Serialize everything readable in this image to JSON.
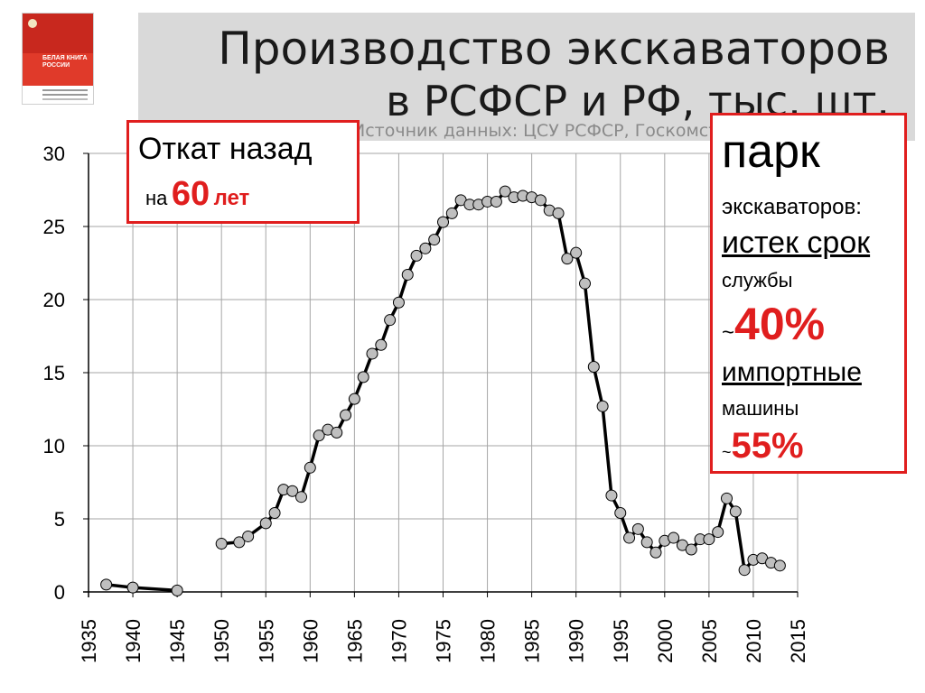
{
  "title": {
    "line1": "Производство экскаваторов",
    "line2": "в РСФСР и РФ, тыс. шт.",
    "source": "Источник данных: ЦСУ РСФСР, Госкомстат"
  },
  "book": {
    "text": "БЕЛАЯ КНИГА РОССИИ",
    "colors": {
      "cover": "#c8281e",
      "band": "#e03a2a"
    }
  },
  "callout_left": {
    "line1": "Откат назад",
    "prefix": "на",
    "number": "60",
    "suffix": "лет"
  },
  "callout_right": {
    "park": "парк",
    "excavators": "экскаваторов:",
    "expired": "истек срок",
    "service": "службы",
    "tilde1": "~",
    "pct_expired": "40%",
    "imported": "импортные",
    "machines": "машины",
    "tilde2": "~",
    "pct_imported": "55%"
  },
  "colors": {
    "accent": "#e01e1e",
    "line": "#000000",
    "marker": "#bfbfbf",
    "grid": "#a6a6a6"
  },
  "chart_data": {
    "type": "line",
    "title": "Производство экскаваторов в РСФСР и РФ, тыс. шт.",
    "xlabel": "",
    "ylabel": "",
    "xlim": [
      1935,
      2015
    ],
    "ylim": [
      0,
      30
    ],
    "xticks": [
      1935,
      1940,
      1945,
      1950,
      1955,
      1960,
      1965,
      1970,
      1975,
      1980,
      1985,
      1990,
      1995,
      2000,
      2005,
      2010,
      2015
    ],
    "yticks": [
      0,
      5,
      10,
      15,
      20,
      25,
      30
    ],
    "grid": true,
    "legend": "none",
    "series": [
      {
        "x": [
          1937,
          1940,
          1945,
          1950,
          1952,
          1953,
          1955,
          1956,
          1957,
          1958,
          1959,
          1960,
          1961,
          1962,
          1963,
          1964,
          1965,
          1966,
          1967,
          1968,
          1969,
          1970,
          1971,
          1972,
          1973,
          1974,
          1975,
          1976,
          1977,
          1978,
          1979,
          1980,
          1981,
          1982,
          1983,
          1984,
          1985,
          1986,
          1987,
          1988,
          1989,
          1990,
          1991,
          1992,
          1993,
          1994,
          1995,
          1996,
          1997,
          1998,
          1999,
          2000,
          2001,
          2002,
          2003,
          2004,
          2005,
          2006,
          2007,
          2008,
          2009,
          2010,
          2011,
          2012,
          2013
        ],
        "y": [
          0.5,
          0.3,
          0.1,
          3.3,
          3.4,
          3.8,
          4.7,
          5.4,
          7.0,
          6.9,
          6.5,
          8.5,
          10.7,
          11.1,
          10.9,
          12.1,
          13.2,
          14.7,
          16.3,
          16.9,
          18.6,
          19.8,
          21.7,
          23.0,
          23.5,
          24.1,
          25.3,
          25.9,
          26.8,
          26.5,
          26.5,
          26.7,
          26.7,
          27.4,
          27.0,
          27.1,
          27.0,
          26.8,
          26.1,
          25.9,
          22.8,
          23.2,
          21.1,
          15.4,
          12.7,
          6.6,
          5.4,
          3.7,
          4.3,
          3.4,
          2.7,
          3.5,
          3.7,
          3.2,
          2.9,
          3.6,
          3.6,
          4.1,
          6.4,
          5.5,
          1.5,
          2.2,
          2.3,
          2.0,
          1.8
        ],
        "breaks_after_x": [
          1945
        ]
      }
    ]
  }
}
